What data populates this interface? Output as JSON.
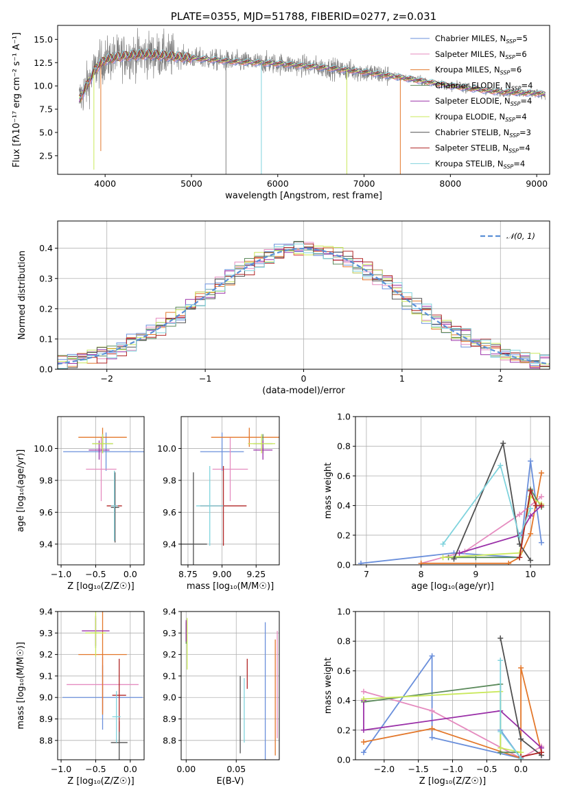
{
  "palette": [
    "#6a8fdb",
    "#e58bbf",
    "#e3772a",
    "#5b8a5b",
    "#9a30a8",
    "#c9e85a",
    "#4f4f4f",
    "#b02525",
    "#7fd3dd"
  ],
  "chart_data": [
    {
      "id": "spectrum",
      "type": "line",
      "title": "PLATE=0355, MJD=51788, FIBERID=0277, z=0.031",
      "xlabel": "wavelength [Angstrom, rest frame]",
      "ylabel": "Flux [fλ10⁻¹⁷ erg cm⁻² s⁻¹ A⁻¹]",
      "xlim": [
        3450,
        9150
      ],
      "ylim": [
        0.5,
        16.5
      ],
      "xticks": [
        4000,
        5000,
        6000,
        7000,
        8000,
        9000
      ],
      "yticks": [
        2.5,
        5.0,
        7.5,
        10.0,
        12.5,
        15.0
      ],
      "legend_position": "top-right",
      "data_color": "#808080",
      "data_range": [
        3700,
        9100
      ],
      "continuum": {
        "x": [
          3700,
          3900,
          4000,
          4200,
          4500,
          5000,
          5500,
          6000,
          6500,
          7000,
          7500,
          8000,
          8500,
          9000,
          9100
        ],
        "y": [
          8.5,
          12.0,
          12.8,
          13.2,
          13.4,
          13.0,
          12.6,
          12.4,
          12.0,
          11.5,
          10.8,
          10.0,
          9.4,
          9.2,
          9.1
        ]
      },
      "series": [
        {
          "name": "Chabrier MILES, N_SSP=5",
          "label_main": "Chabrier MILES, N",
          "label_sub": "SSP",
          "label_tail": "=5"
        },
        {
          "name": "Salpeter MILES, N_SSP=6",
          "label_main": "Salpeter MILES, N",
          "label_sub": "SSP",
          "label_tail": "=6"
        },
        {
          "name": "Kroupa MILES, N_SSP=6",
          "label_main": "Kroupa MILES, N",
          "label_sub": "SSP",
          "label_tail": "=6"
        },
        {
          "name": "Chabrier ELODIE, N_SSP=4",
          "label_main": "Chabrier ELODIE, N",
          "label_sub": "SSP",
          "label_tail": "=4"
        },
        {
          "name": "Salpeter ELODIE, N_SSP=4",
          "label_main": "Salpeter ELODIE, N",
          "label_sub": "SSP",
          "label_tail": "=4"
        },
        {
          "name": "Kroupa ELODIE, N_SSP=4",
          "label_main": "Kroupa ELODIE, N",
          "label_sub": "SSP",
          "label_tail": "=4"
        },
        {
          "name": "Chabrier STELIB, N_SSP=3",
          "label_main": "Chabrier STELIB, N",
          "label_sub": "SSP",
          "label_tail": "=3"
        },
        {
          "name": "Salpeter STELIB, N_SSP=4",
          "label_main": "Salpeter STELIB, N",
          "label_sub": "SSP",
          "label_tail": "=4"
        },
        {
          "name": "Kroupa STELIB, N_SSP=4",
          "label_main": "Kroupa STELIB, N",
          "label_sub": "SSP",
          "label_tail": "=4"
        }
      ],
      "dropouts": [
        {
          "x": 3870,
          "ymin": 1.0,
          "color": "#c9e85a"
        },
        {
          "x": 3950,
          "ymin": 3.0,
          "color": "#e3772a"
        },
        {
          "x": 5400,
          "ymin": 0.5,
          "color": "#808080"
        },
        {
          "x": 5810,
          "ymin": 0.5,
          "color": "#7fd3dd"
        },
        {
          "x": 6800,
          "ymin": 0.5,
          "color": "#c9e85a"
        },
        {
          "x": 7420,
          "ymin": 0.5,
          "color": "#e3772a"
        }
      ]
    },
    {
      "id": "residuals",
      "type": "histogram",
      "xlabel": "(data-model)/error",
      "ylabel": "Normed distribution",
      "xlim": [
        -2.5,
        2.5
      ],
      "ylim": [
        0,
        0.49
      ],
      "xticks": [
        -2,
        -1,
        0,
        1,
        2
      ],
      "yticks": [
        0.0,
        0.1,
        0.2,
        0.3,
        0.4
      ],
      "bin_width": 0.1,
      "reference": {
        "name": "N(0,1)",
        "label": "𝒩(0, 1)",
        "color": "#5a8fd6",
        "style": "dashed"
      },
      "legend_position": "top-right",
      "grid": true
    },
    {
      "id": "age-vs-Z",
      "type": "errorbar",
      "xlabel": "Z [log₁₀(Z/Z☉)]",
      "ylabel": "age  [log₁₀(age/yr)]",
      "xlim": [
        -1.05,
        0.2
      ],
      "ylim": [
        9.27,
        10.2
      ],
      "xticks": [
        -1.0,
        -0.5,
        0.0
      ],
      "yticks": [
        9.4,
        9.6,
        9.8,
        10.0
      ],
      "points": [
        {
          "x": -0.35,
          "y": 9.98,
          "xerr": 0.62,
          "yerr": 0.12,
          "color": "#6a8fdb"
        },
        {
          "x": -0.42,
          "y": 9.87,
          "xerr": 0.22,
          "yerr": 0.2,
          "color": "#e58bbf"
        },
        {
          "x": -0.4,
          "y": 10.07,
          "xerr": 0.35,
          "yerr": 0.06,
          "color": "#e3772a"
        },
        {
          "x": -0.4,
          "y": 10.03,
          "xerr": 0.15,
          "yerr": 0.06,
          "color": "#5b8a5b"
        },
        {
          "x": -0.45,
          "y": 9.99,
          "xerr": 0.15,
          "yerr": 0.06,
          "color": "#9a30a8"
        },
        {
          "x": -0.4,
          "y": 10.03,
          "xerr": 0.15,
          "yerr": 0.06,
          "color": "#c9e85a"
        },
        {
          "x": -0.22,
          "y": 9.63,
          "xerr": 0.06,
          "yerr": 0.22,
          "color": "#4f4f4f"
        },
        {
          "x": -0.23,
          "y": 9.64,
          "xerr": 0.11,
          "yerr": 0.22,
          "color": "#b02525"
        },
        {
          "x": -0.23,
          "y": 9.64,
          "xerr": 0.05,
          "yerr": 0.22,
          "color": "#7fd3dd"
        }
      ]
    },
    {
      "id": "age-vs-mass",
      "type": "errorbar",
      "xlabel": "mass [log₁₀(M/M☉)]",
      "xlim": [
        8.7,
        9.42
      ],
      "ylim": [
        9.27,
        10.2
      ],
      "xticks": [
        8.75,
        9.0,
        9.25
      ],
      "yticks": [
        9.4,
        9.6,
        9.8,
        10.0
      ],
      "points": [
        {
          "x": 9.0,
          "y": 9.98,
          "xerr": 0.16,
          "yerr": 0.12,
          "color": "#6a8fdb"
        },
        {
          "x": 9.06,
          "y": 9.87,
          "xerr": 0.13,
          "yerr": 0.2,
          "color": "#e58bbf"
        },
        {
          "x": 9.2,
          "y": 10.07,
          "xerr": 0.28,
          "yerr": 0.06,
          "color": "#e3772a"
        },
        {
          "x": 9.3,
          "y": 10.03,
          "xerr": 0.07,
          "yerr": 0.06,
          "color": "#5b8a5b"
        },
        {
          "x": 9.3,
          "y": 9.99,
          "xerr": 0.07,
          "yerr": 0.06,
          "color": "#9a30a8"
        },
        {
          "x": 9.29,
          "y": 10.03,
          "xerr": 0.1,
          "yerr": 0.06,
          "color": "#c9e85a"
        },
        {
          "x": 8.79,
          "y": 9.4,
          "xerr": 0.1,
          "yerr": 0.45,
          "color": "#4f4f4f"
        },
        {
          "x": 9.01,
          "y": 9.64,
          "xerr": 0.17,
          "yerr": 0.25,
          "color": "#b02525"
        },
        {
          "x": 8.91,
          "y": 9.64,
          "xerr": 0.1,
          "yerr": 0.25,
          "color": "#7fd3dd"
        }
      ]
    },
    {
      "id": "massweight-vs-age",
      "type": "line",
      "xlabel": "age  [log₁₀(age/yr)]",
      "ylabel": "mass weight",
      "xlim": [
        6.8,
        10.35
      ],
      "ylim": [
        0,
        1
      ],
      "xticks": [
        7,
        8,
        9,
        10
      ],
      "yticks": [
        0.0,
        0.2,
        0.4,
        0.6,
        0.8,
        1.0
      ],
      "marker": "+",
      "series": [
        {
          "color": "#6a8fdb",
          "x": [
            6.9,
            8.6,
            9.8,
            10.0,
            10.2
          ],
          "y": [
            0.01,
            0.08,
            0.05,
            0.7,
            0.15
          ]
        },
        {
          "color": "#e58bbf",
          "x": [
            8.0,
            8.8,
            9.8,
            10.2
          ],
          "y": [
            0.01,
            0.09,
            0.34,
            0.46
          ]
        },
        {
          "color": "#e3772a",
          "x": [
            8.0,
            9.6,
            9.8,
            10.0,
            10.2
          ],
          "y": [
            0.01,
            0.01,
            0.05,
            0.21,
            0.62
          ]
        },
        {
          "color": "#5b8a5b",
          "x": [
            8.5,
            9.0,
            9.8,
            10.0,
            10.2
          ],
          "y": [
            0.05,
            0.05,
            0.05,
            0.51,
            0.39
          ]
        },
        {
          "color": "#9a30a8",
          "x": [
            8.7,
            9.8,
            10.0,
            10.2
          ],
          "y": [
            0.08,
            0.2,
            0.33,
            0.4
          ]
        },
        {
          "color": "#c9e85a",
          "x": [
            8.4,
            9.8,
            10.0,
            10.2
          ],
          "y": [
            0.05,
            0.08,
            0.46,
            0.41
          ]
        },
        {
          "color": "#4f4f4f",
          "x": [
            8.6,
            9.5,
            9.8,
            10.0
          ],
          "y": [
            0.04,
            0.82,
            0.14,
            0.03
          ]
        },
        {
          "color": "#b02525",
          "x": [
            9.8,
            10.0,
            10.1,
            10.2
          ],
          "y": [
            0.05,
            0.5,
            0.4,
            0.4
          ]
        },
        {
          "color": "#7fd3dd",
          "x": [
            8.4,
            9.45,
            9.8,
            10.0
          ],
          "y": [
            0.14,
            0.67,
            0.19,
            0.38
          ]
        }
      ]
    },
    {
      "id": "mass-vs-Z",
      "type": "errorbar",
      "xlabel": "Z [log₁₀(Z/Z☉)]",
      "ylabel": "mass [log₁₀(M/M☉)]",
      "xlim": [
        -1.05,
        0.2
      ],
      "ylim": [
        8.71,
        9.4
      ],
      "xticks": [
        -1.0,
        -0.5,
        0.0
      ],
      "yticks": [
        8.8,
        8.9,
        9.0,
        9.1,
        9.2,
        9.3,
        9.4
      ],
      "points": [
        {
          "x": -0.4,
          "y": 9.0,
          "xerr": 0.58,
          "yerr": 0.15,
          "color": "#6a8fdb"
        },
        {
          "x": -0.4,
          "y": 9.06,
          "xerr": 0.52,
          "yerr": 0.13,
          "color": "#e58bbf"
        },
        {
          "x": -0.4,
          "y": 9.2,
          "xerr": 0.35,
          "yerr": 0.28,
          "color": "#e3772a"
        },
        {
          "x": -0.5,
          "y": 9.3,
          "xerr": 0.07,
          "yerr": 0.07,
          "color": "#5b8a5b"
        },
        {
          "x": -0.5,
          "y": 9.31,
          "xerr": 0.2,
          "yerr": 0.07,
          "color": "#9a30a8"
        },
        {
          "x": -0.5,
          "y": 9.3,
          "xerr": 0.15,
          "yerr": 0.11,
          "color": "#c9e85a"
        },
        {
          "x": -0.16,
          "y": 8.79,
          "xerr": 0.12,
          "yerr": 0.1,
          "color": "#4f4f4f"
        },
        {
          "x": -0.16,
          "y": 9.01,
          "xerr": 0.1,
          "yerr": 0.17,
          "color": "#b02525"
        },
        {
          "x": -0.2,
          "y": 8.91,
          "xerr": 0.06,
          "yerr": 0.12,
          "color": "#7fd3dd"
        }
      ]
    },
    {
      "id": "mass-vs-ebv",
      "type": "errorbar",
      "xlabel": "E(B-V)",
      "xlim": [
        -0.005,
        0.093
      ],
      "ylim": [
        8.71,
        9.4
      ],
      "xticks": [
        0.0,
        0.05
      ],
      "yticks": [
        8.8,
        8.9,
        9.0,
        9.1,
        9.2,
        9.3,
        9.4
      ],
      "points": [
        {
          "x": 0.079,
          "y": 9.0,
          "xerr": 0,
          "yerr": 0.35,
          "color": "#6a8fdb"
        },
        {
          "x": 0.091,
          "y": 9.06,
          "xerr": 0,
          "yerr": 0.25,
          "color": "#e58bbf"
        },
        {
          "x": 0.089,
          "y": 9.0,
          "xerr": 0,
          "yerr": 0.27,
          "color": "#e3772a"
        },
        {
          "x": 0.0,
          "y": 9.3,
          "xerr": 0,
          "yerr": 0.05,
          "color": "#5b8a5b"
        },
        {
          "x": 0.0,
          "y": 9.31,
          "xerr": 0,
          "yerr": 0.05,
          "color": "#9a30a8"
        },
        {
          "x": 0.001,
          "y": 9.25,
          "xerr": 0,
          "yerr": 0.12,
          "color": "#c9e85a"
        },
        {
          "x": 0.054,
          "y": 8.92,
          "xerr": 0,
          "yerr": 0.18,
          "color": "#4f4f4f"
        },
        {
          "x": 0.061,
          "y": 9.11,
          "xerr": 0,
          "yerr": 0.07,
          "color": "#b02525"
        },
        {
          "x": 0.058,
          "y": 8.94,
          "xerr": 0,
          "yerr": 0.15,
          "color": "#7fd3dd"
        }
      ]
    },
    {
      "id": "massweight-vs-Z",
      "type": "line",
      "xlabel": "Z [log₁₀(Z/Z☉)]",
      "ylabel": "mass weight",
      "xlim": [
        -2.42,
        0.42
      ],
      "ylim": [
        0,
        1
      ],
      "xticks": [
        -2.0,
        -1.5,
        -1.0,
        -0.5,
        0.0
      ],
      "yticks": [
        0.0,
        0.2,
        0.4,
        0.6,
        0.8,
        1.0
      ],
      "marker": "+",
      "series": [
        {
          "color": "#6a8fdb",
          "x": [
            -2.3,
            -1.3,
            -1.3,
            0.0,
            -0.3
          ],
          "y": [
            0.05,
            0.7,
            0.15,
            0.01,
            0.2
          ]
        },
        {
          "color": "#e58bbf",
          "x": [
            -2.3,
            -1.3,
            0.0,
            0.3
          ],
          "y": [
            0.46,
            0.33,
            0.01,
            0.09
          ]
        },
        {
          "color": "#e3772a",
          "x": [
            -2.3,
            -1.3,
            0.0,
            0.0,
            0.3
          ],
          "y": [
            0.12,
            0.21,
            0.01,
            0.62,
            0.05
          ]
        },
        {
          "color": "#5b8a5b",
          "x": [
            -2.3,
            -0.3,
            -0.3,
            0.0
          ],
          "y": [
            0.39,
            0.51,
            0.05,
            0.05
          ]
        },
        {
          "color": "#9a30a8",
          "x": [
            -2.3,
            -2.3,
            -0.3,
            0.3
          ],
          "y": [
            0.4,
            0.2,
            0.33,
            0.08
          ]
        },
        {
          "color": "#c9e85a",
          "x": [
            -2.3,
            -0.3,
            -0.3,
            0.0
          ],
          "y": [
            0.41,
            0.46,
            0.08,
            0.05
          ]
        },
        {
          "color": "#4f4f4f",
          "x": [
            -0.3,
            0.0,
            0.3
          ],
          "y": [
            0.82,
            0.14,
            0.03
          ]
        },
        {
          "color": "#b02525",
          "x": [
            0.0,
            0.3
          ],
          "y": [
            0.02,
            0.05
          ]
        },
        {
          "color": "#7fd3dd",
          "x": [
            -0.3,
            -0.3,
            0.0
          ],
          "y": [
            0.67,
            0.19,
            0.01
          ]
        }
      ]
    }
  ]
}
